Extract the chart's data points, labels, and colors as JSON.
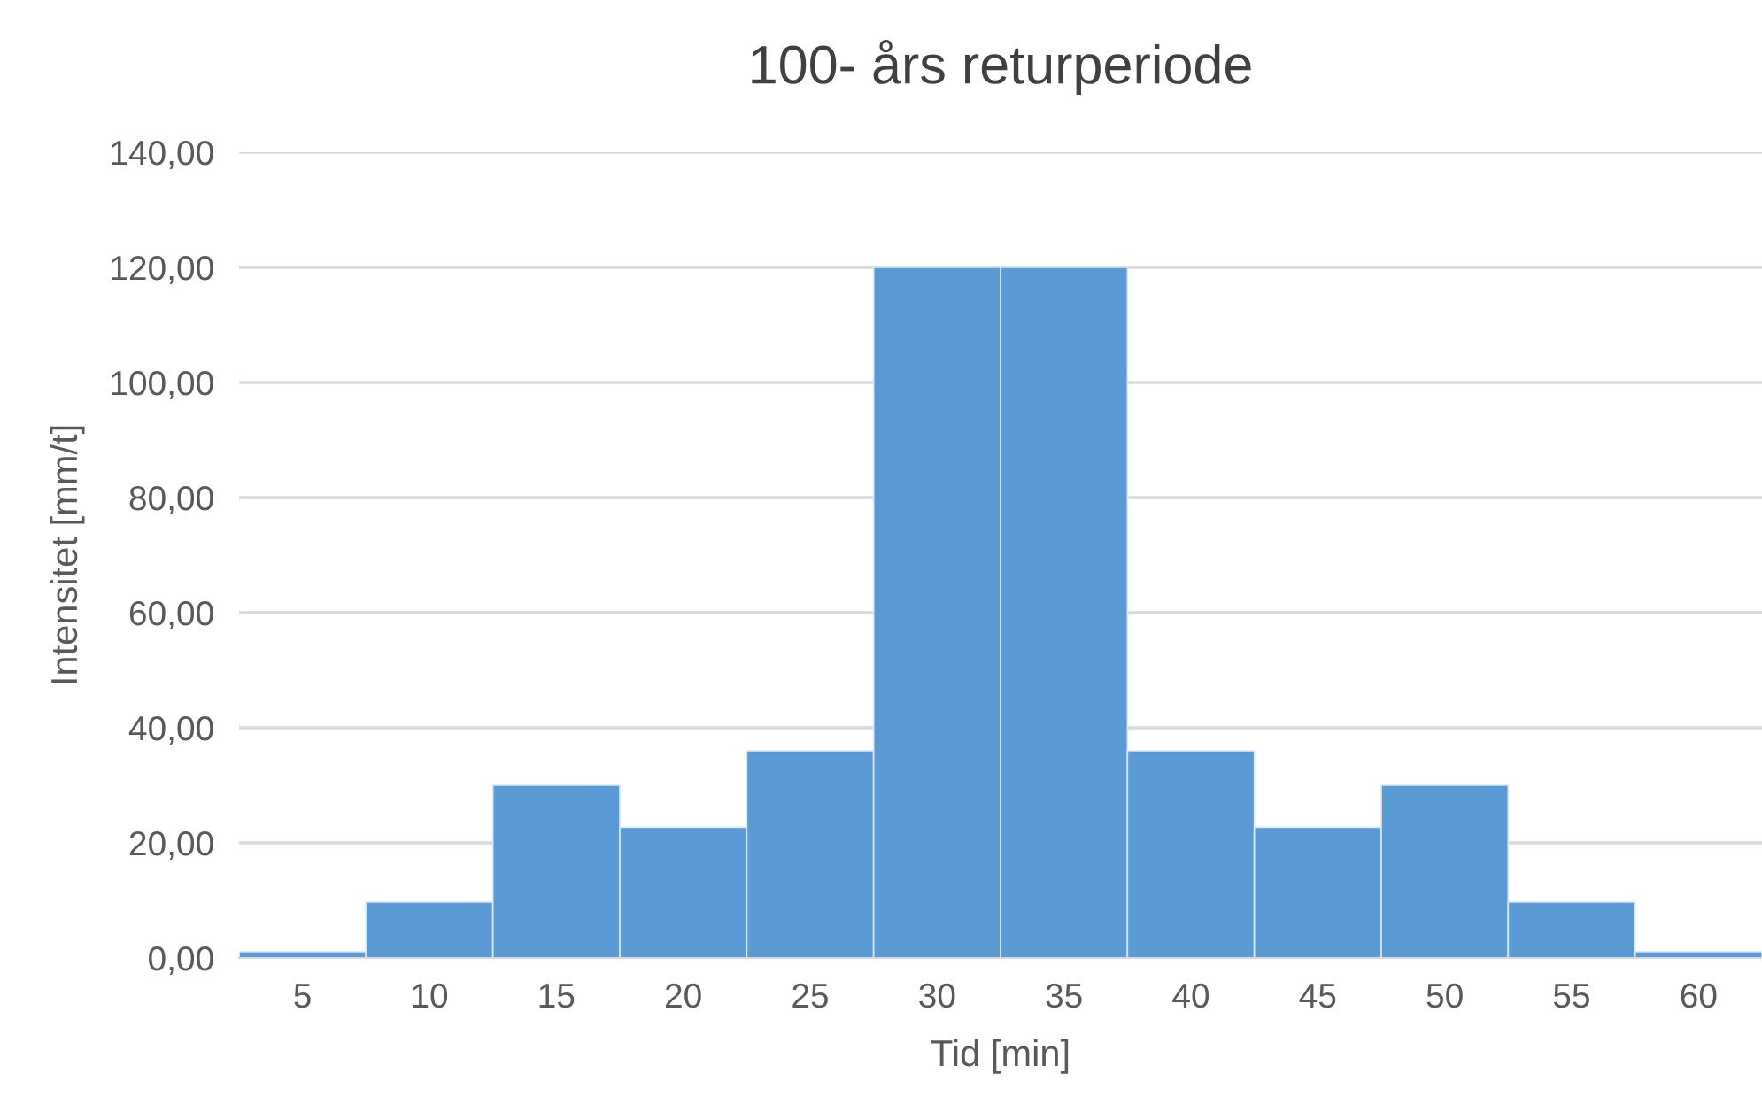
{
  "chart_data": {
    "type": "bar",
    "title": "100- års returperiode",
    "xlabel": "Tid [min]",
    "ylabel": "Intensitet [mm/t]",
    "categories": [
      "5",
      "10",
      "15",
      "20",
      "25",
      "30",
      "35",
      "40",
      "45",
      "50",
      "55",
      "60"
    ],
    "values": [
      1.1,
      9.7,
      30,
      22.7,
      36,
      120,
      120,
      36,
      22.7,
      30,
      9.7,
      1.1
    ],
    "color": "#5b9bd5",
    "ylim": [
      0,
      140
    ],
    "yticks": [
      {
        "value": 0,
        "label": "0,00"
      },
      {
        "value": 20,
        "label": "20,00"
      },
      {
        "value": 40,
        "label": "40,00"
      },
      {
        "value": 60,
        "label": "60,00"
      },
      {
        "value": 80,
        "label": "80,00"
      },
      {
        "value": 100,
        "label": "100,00"
      },
      {
        "value": 120,
        "label": "120,00"
      },
      {
        "value": 140,
        "label": "140,00"
      }
    ],
    "grid": "y"
  }
}
